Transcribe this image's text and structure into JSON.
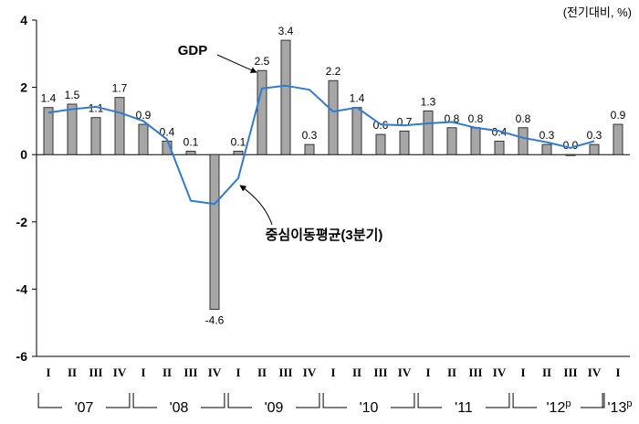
{
  "chart_data": {
    "type": "bar",
    "unit_label": "(전기대비, %)",
    "ylim": [
      -6,
      4
    ],
    "yticks": [
      4,
      2,
      0,
      -2,
      -4,
      -6
    ],
    "quarter_labels": [
      "I",
      "II",
      "III",
      "IV",
      "I",
      "II",
      "III",
      "IV",
      "I",
      "II",
      "III",
      "IV",
      "I",
      "II",
      "III",
      "IV",
      "I",
      "II",
      "III",
      "IV",
      "I",
      "II",
      "III",
      "IV",
      "I"
    ],
    "years": [
      {
        "label": "'07",
        "sup": ""
      },
      {
        "label": "'08",
        "sup": ""
      },
      {
        "label": "'09",
        "sup": ""
      },
      {
        "label": "'10",
        "sup": ""
      },
      {
        "label": "'11",
        "sup": ""
      },
      {
        "label": "'12",
        "sup": "p"
      },
      {
        "label": "'13",
        "sup": "p"
      }
    ],
    "series": [
      {
        "name": "GDP",
        "type": "bar",
        "values": [
          1.4,
          1.5,
          1.1,
          1.7,
          0.9,
          0.4,
          0.1,
          -4.6,
          0.1,
          2.5,
          3.4,
          0.3,
          2.2,
          1.4,
          0.6,
          0.7,
          1.3,
          0.8,
          0.8,
          0.4,
          0.8,
          0.3,
          0.0,
          0.3,
          0.9
        ],
        "value_labels": [
          "1.4",
          "1.5",
          "1.1",
          "1.7",
          "0.9",
          "0.4",
          "0.1",
          "-4.6",
          "0.1",
          "2.5",
          "3.4",
          "0.3",
          "2.2",
          "1.4",
          "0.6",
          "0.7",
          "1.3",
          "0.8",
          "0.8",
          "0.4",
          "0.8",
          "0.3",
          "0.0",
          "0.3",
          "0.9"
        ],
        "color": "#a6a6a6"
      },
      {
        "name": "중심이동평균(3분기)",
        "type": "line",
        "values": [
          1.25,
          1.35,
          1.42,
          1.25,
          1.0,
          0.45,
          -1.37,
          -1.47,
          -0.7,
          1.97,
          2.05,
          1.93,
          1.28,
          1.4,
          0.9,
          0.87,
          0.93,
          0.97,
          0.8,
          0.7,
          0.5,
          0.37,
          0.2,
          0.4,
          null
        ],
        "color": "#2e7bd6"
      }
    ],
    "annotations": [
      {
        "text": "GDP",
        "target": "GDP"
      },
      {
        "text": "중심이동평균(3분기)",
        "target": "중심이동평균(3분기)"
      }
    ]
  }
}
